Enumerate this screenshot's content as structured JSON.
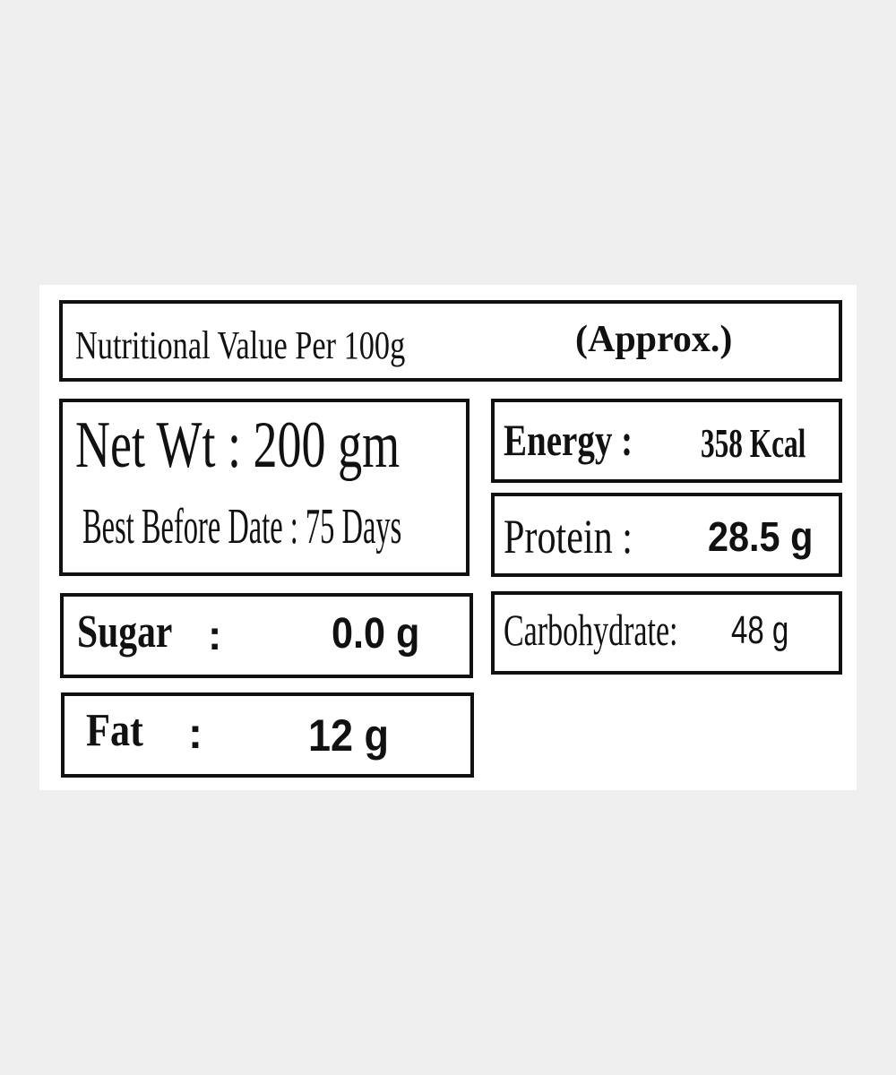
{
  "label": {
    "title": "Nutritional Value Per 100g",
    "approx": "(Approx.)",
    "net_weight": "Net Wt : 200 gm",
    "best_before": "Best Before Date : 75 Days",
    "items": [
      {
        "label": "Energy :",
        "value": "358 Kcal"
      },
      {
        "label": "Protein :",
        "value": "28.5 g"
      },
      {
        "label": "Sugar",
        "colon": ":",
        "value": "0.0 g"
      },
      {
        "label": "Carbohydrate:",
        "value": "48 g"
      },
      {
        "label": "Fat",
        "colon": ":",
        "value": "12 g"
      }
    ]
  }
}
